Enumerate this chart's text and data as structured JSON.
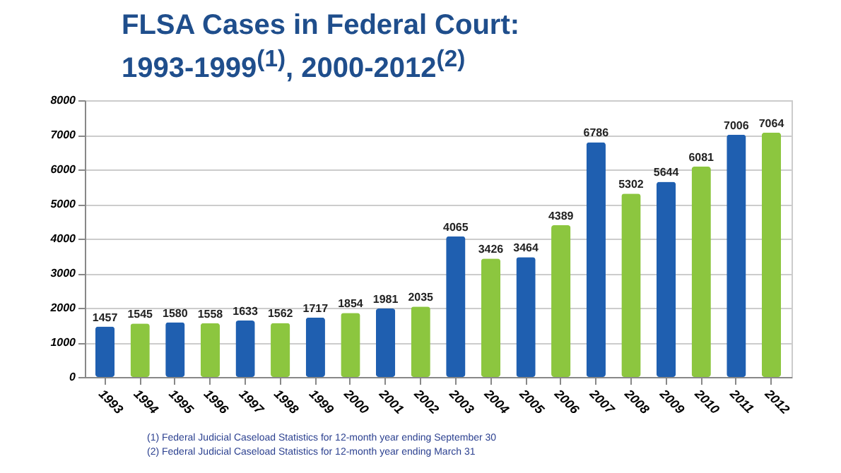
{
  "chart_data": {
    "type": "bar",
    "title": "FLSA Cases in Federal Court: 1993-1999$^{(1)}$, 2000-2012$^{(2)}$",
    "categories": [
      "1993",
      "1994",
      "1995",
      "1996",
      "1997",
      "1998",
      "1999",
      "2000",
      "2001",
      "2002",
      "2003",
      "2004",
      "2005",
      "2006",
      "2007",
      "2008",
      "2009",
      "2010",
      "2011",
      "2012"
    ],
    "values": [
      1457,
      1545,
      1580,
      1558,
      1633,
      1562,
      1717,
      1854,
      1981,
      2035,
      4065,
      3426,
      3464,
      4389,
      6786,
      5302,
      5644,
      6081,
      7006,
      7064
    ],
    "colors": [
      "#1f5fb0",
      "#8cc63f",
      "#1f5fb0",
      "#8cc63f",
      "#1f5fb0",
      "#8cc63f",
      "#1f5fb0",
      "#8cc63f",
      "#1f5fb0",
      "#8cc63f",
      "#1f5fb0",
      "#8cc63f",
      "#1f5fb0",
      "#8cc63f",
      "#1f5fb0",
      "#8cc63f",
      "#1f5fb0",
      "#8cc63f",
      "#1f5fb0",
      "#8cc63f"
    ],
    "ylim": [
      0,
      8000
    ],
    "yticks": [
      0,
      1000,
      2000,
      3000,
      4000,
      5000,
      6000,
      7000,
      8000
    ],
    "grid": "y",
    "data_labels": true,
    "annotations": [
      "(1) Federal Judicial Caseload Statistics for 12-month year ending September 30",
      "(2) Federal Judicial Caseload Statistics for 12-month year ending March 31"
    ]
  }
}
